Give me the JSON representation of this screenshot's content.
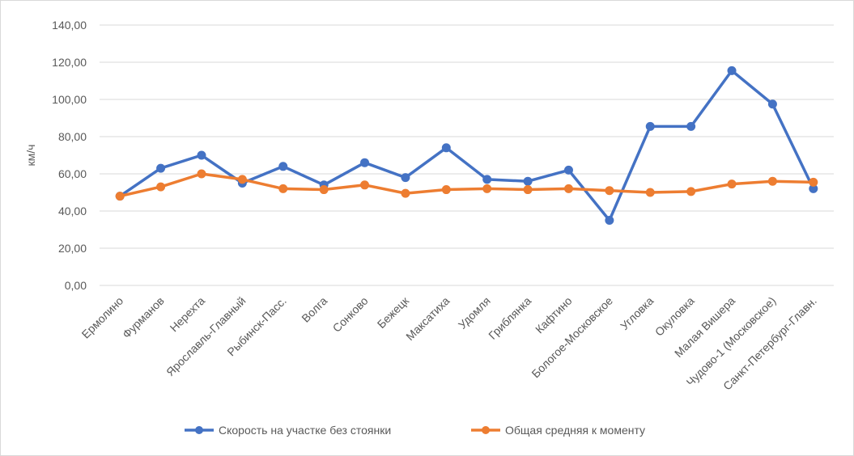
{
  "chart_data": {
    "type": "line",
    "ylabel": "км/ч",
    "ylim": [
      0,
      140
    ],
    "yticks": [
      "0,00",
      "20,00",
      "40,00",
      "60,00",
      "80,00",
      "100,00",
      "120,00",
      "140,00"
    ],
    "grid": true,
    "legend_position": "bottom",
    "categories": [
      "Ермолино",
      "Фурманов",
      "Нерехта",
      "Ярославль-Главный",
      "Рыбинск-Пасс.",
      "Волга",
      "Сонково",
      "Бежецк",
      "Максатиха",
      "Удомля",
      "Гриблянка",
      "Кафтино",
      "Бологое-Московское",
      "Угловка",
      "Окуловка",
      "Малая Вишера",
      "Чудово-1 (Московское)",
      "Санкт-Петербург-Главн."
    ],
    "series": [
      {
        "name": "Скорость на участке без стоянки",
        "color": "#4472c4",
        "values": [
          48,
          63,
          70,
          55,
          64,
          54,
          66,
          58,
          74,
          57,
          56,
          62,
          35,
          85.5,
          85.5,
          115.5,
          97.5,
          52
        ]
      },
      {
        "name": "Общая средняя к моменту",
        "color": "#ed7d31",
        "values": [
          48,
          53,
          60,
          57,
          52,
          51.5,
          54,
          49.5,
          51.5,
          52,
          51.5,
          52,
          51,
          50,
          50.5,
          54.5,
          56,
          55.5
        ]
      }
    ]
  }
}
